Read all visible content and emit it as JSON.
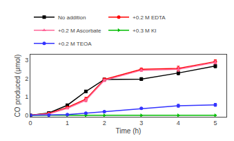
{
  "chart_data": {
    "type": "line",
    "xlabel": "Time (h)",
    "ylabel": "CO produced (μmol)",
    "x": [
      0,
      0.5,
      1.0,
      1.5,
      2.0,
      3.0,
      4.0,
      5.0
    ],
    "series": [
      {
        "name": "No addition",
        "color": "#000000",
        "marker": "square",
        "values": [
          0,
          0.13,
          0.55,
          1.3,
          1.95,
          1.97,
          2.3,
          2.68
        ],
        "yerr": [
          0,
          0.03,
          0.04,
          0.05,
          0.06,
          0.08,
          0.1,
          0.1
        ]
      },
      {
        "name": "+0.2 M EDTA",
        "color": "#ff0000",
        "marker": "circle",
        "values": [
          0,
          0.1,
          0.43,
          0.88,
          1.95,
          2.5,
          2.55,
          2.92
        ],
        "yerr": [
          0,
          0.03,
          0.04,
          0.1,
          0.07,
          0.07,
          0.12,
          0.1
        ]
      },
      {
        "name": "+0.2 M Ascorbate",
        "color": "#ff6699",
        "marker": "triangle-up",
        "values": [
          0,
          0.08,
          0.38,
          0.82,
          1.9,
          2.45,
          2.5,
          2.88
        ],
        "yerr": [
          0,
          0.03,
          0.04,
          0.09,
          0.07,
          0.07,
          0.11,
          0.09
        ]
      },
      {
        "name": "+0.3 M KI",
        "color": "#00bb00",
        "marker": "triangle-right",
        "values": [
          0,
          0.0,
          0.0,
          0.0,
          0.0,
          0.0,
          0.0,
          0.0
        ],
        "yerr": [
          0,
          0.005,
          0.005,
          0.005,
          0.005,
          0.005,
          0.005,
          0.005
        ]
      },
      {
        "name": "+0.2 M TEOA",
        "color": "#3333ff",
        "marker": "circle",
        "values": [
          0,
          0.01,
          0.04,
          0.12,
          0.2,
          0.38,
          0.52,
          0.57
        ],
        "yerr": [
          0,
          0.01,
          0.02,
          0.03,
          0.04,
          0.04,
          0.08,
          0.08
        ]
      }
    ],
    "xlim": [
      0,
      5.3
    ],
    "ylim": [
      -0.08,
      3.3
    ],
    "xticks": [
      0,
      1,
      2,
      3,
      4,
      5
    ],
    "yticks": [
      0,
      1,
      2,
      3
    ],
    "grid": false,
    "legend": "upper left"
  }
}
